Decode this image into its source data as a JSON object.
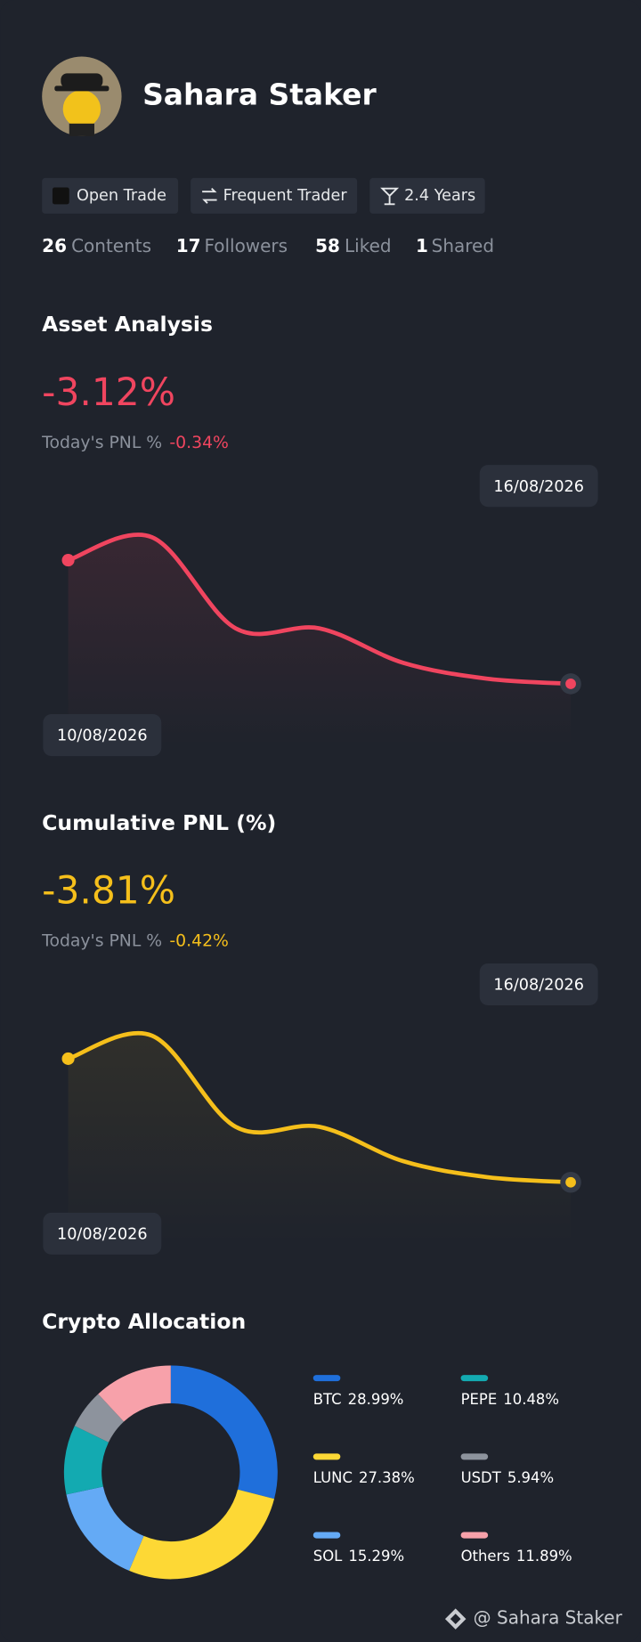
{
  "profile": {
    "name": "Sahara Staker",
    "badges": [
      "Open Trade",
      "Frequent Trader",
      "2.4 Years"
    ],
    "stats": [
      {
        "value": 26,
        "label": "Contents"
      },
      {
        "value": 17,
        "label": "Followers"
      },
      {
        "value": 58,
        "label": "Liked"
      },
      {
        "value": 1,
        "label": "Shared"
      }
    ]
  },
  "chart_data": [
    {
      "type": "line",
      "title": "Asset Analysis",
      "headline": "-3.12%",
      "pnl_label": "Today's PNL %",
      "pnl_value": "-0.34%",
      "color": "#f0455f",
      "categories": [
        "10/08/2026",
        null,
        null,
        null,
        null,
        null,
        "16/08/2026"
      ],
      "values": [
        0,
        0.58,
        -1.72,
        -1.72,
        -2.59,
        -2.99,
        -3.12
      ]
    },
    {
      "type": "line",
      "title": "Cumulative PNL (%)",
      "headline": "-3.81%",
      "pnl_label": "Today's PNL %",
      "pnl_value": "-0.42%",
      "color": "#f5bf1b",
      "categories": [
        "10/08/2026",
        null,
        null,
        null,
        null,
        null,
        "16/08/2026"
      ],
      "values": [
        0,
        0.71,
        -2.1,
        -2.1,
        -3.16,
        -3.65,
        -3.81
      ]
    },
    {
      "type": "donut",
      "title": "Crypto Allocation",
      "categories": [
        "BTC",
        "LUNC",
        "SOL",
        "PEPE",
        "USDT",
        "Others"
      ],
      "colors": [
        "#1f6fdb",
        "#fdd835",
        "#64aaf5",
        "#13aab1",
        "#8d939d",
        "#f7a1aa"
      ],
      "values": [
        28.99,
        27.38,
        15.29,
        10.48,
        5.94,
        11.89
      ],
      "value_labels": [
        "28.99%",
        "27.38%",
        "15.29%",
        "10.48%",
        "5.94%",
        "11.89%"
      ]
    }
  ],
  "footer": "@ Sahara Staker"
}
